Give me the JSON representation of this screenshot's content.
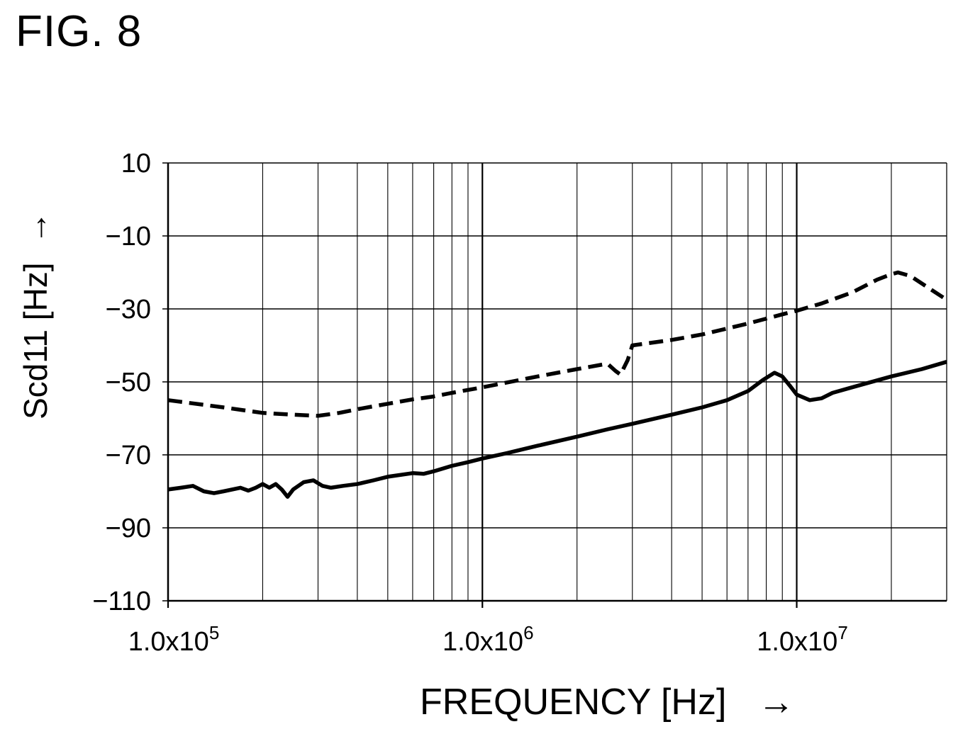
{
  "figure": {
    "title": "FIG. 8"
  },
  "chart_data": {
    "type": "line",
    "title": "",
    "xlabel": "FREQUENCY [Hz]",
    "ylabel": "Scd11 [Hz]",
    "arrow": "→",
    "x_scale": "log",
    "xlim": [
      100000,
      30000000
    ],
    "ylim": [
      -110,
      10
    ],
    "y_ticks": [
      10,
      -10,
      -30,
      -50,
      -70,
      -90,
      -110
    ],
    "y_tick_labels": [
      "10",
      "−10",
      "−30",
      "−50",
      "−70",
      "−90",
      "−110"
    ],
    "x_ticks": [
      {
        "value": 100000,
        "mantissa": "1.0x10",
        "exponent": "5"
      },
      {
        "value": 1000000,
        "mantissa": "1.0x10",
        "exponent": "6"
      },
      {
        "value": 10000000,
        "mantissa": "1.0x10",
        "exponent": "7"
      }
    ],
    "grid": true,
    "series": [
      {
        "style": "dashed",
        "color": "#000000",
        "points": [
          [
            100000,
            -55
          ],
          [
            150000,
            -57
          ],
          [
            200000,
            -58.5
          ],
          [
            250000,
            -59
          ],
          [
            300000,
            -59.3
          ],
          [
            350000,
            -58.5
          ],
          [
            400000,
            -57.5
          ],
          [
            500000,
            -56
          ],
          [
            600000,
            -54.8
          ],
          [
            700000,
            -54
          ],
          [
            800000,
            -53
          ],
          [
            1000000,
            -51.5
          ],
          [
            1500000,
            -48.5
          ],
          [
            2000000,
            -46.5
          ],
          [
            2500000,
            -45
          ],
          [
            2650000,
            -47
          ],
          [
            2750000,
            -48
          ],
          [
            2900000,
            -44
          ],
          [
            3000000,
            -40
          ],
          [
            4000000,
            -38.5
          ],
          [
            5000000,
            -37
          ],
          [
            7000000,
            -34
          ],
          [
            9000000,
            -31.5
          ],
          [
            10000000,
            -30.5
          ],
          [
            12000000,
            -28.5
          ],
          [
            15000000,
            -25.5
          ],
          [
            18000000,
            -22
          ],
          [
            20000000,
            -20.5
          ],
          [
            21000000,
            -20
          ],
          [
            23000000,
            -21
          ],
          [
            26000000,
            -24
          ],
          [
            30000000,
            -27.5
          ]
        ]
      },
      {
        "style": "solid",
        "color": "#000000",
        "points": [
          [
            100000,
            -79.5
          ],
          [
            110000,
            -79
          ],
          [
            120000,
            -78.5
          ],
          [
            130000,
            -80
          ],
          [
            140000,
            -80.5
          ],
          [
            150000,
            -80
          ],
          [
            170000,
            -79
          ],
          [
            180000,
            -79.8
          ],
          [
            190000,
            -79
          ],
          [
            200000,
            -78
          ],
          [
            210000,
            -79
          ],
          [
            220000,
            -78
          ],
          [
            230000,
            -79.5
          ],
          [
            240000,
            -81.5
          ],
          [
            250000,
            -79.5
          ],
          [
            270000,
            -77.5
          ],
          [
            290000,
            -77
          ],
          [
            310000,
            -78.5
          ],
          [
            330000,
            -79
          ],
          [
            360000,
            -78.5
          ],
          [
            400000,
            -78
          ],
          [
            450000,
            -77
          ],
          [
            500000,
            -76
          ],
          [
            600000,
            -75
          ],
          [
            650000,
            -75.2
          ],
          [
            700000,
            -74.5
          ],
          [
            800000,
            -73
          ],
          [
            900000,
            -72
          ],
          [
            1000000,
            -71
          ],
          [
            1200000,
            -69.5
          ],
          [
            1500000,
            -67.5
          ],
          [
            2000000,
            -65
          ],
          [
            2500000,
            -63
          ],
          [
            3000000,
            -61.5
          ],
          [
            4000000,
            -59
          ],
          [
            5000000,
            -57
          ],
          [
            6000000,
            -55
          ],
          [
            7000000,
            -52.5
          ],
          [
            7800000,
            -49.5
          ],
          [
            8500000,
            -47.5
          ],
          [
            9000000,
            -48.5
          ],
          [
            9500000,
            -51
          ],
          [
            10000000,
            -53.5
          ],
          [
            11000000,
            -55
          ],
          [
            12000000,
            -54.5
          ],
          [
            13000000,
            -53
          ],
          [
            15000000,
            -51.5
          ],
          [
            20000000,
            -48.5
          ],
          [
            25000000,
            -46.5
          ],
          [
            30000000,
            -44.5
          ]
        ]
      }
    ]
  }
}
